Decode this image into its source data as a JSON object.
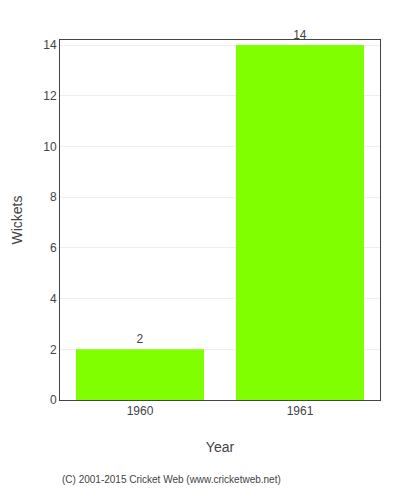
{
  "chart_data": {
    "type": "bar",
    "categories": [
      "1960",
      "1961"
    ],
    "values": [
      2,
      14
    ],
    "color": "#7FFF00",
    "xlabel": "Year",
    "ylabel": "Wickets",
    "ylim": [
      0,
      14.2
    ],
    "yticks": [
      0,
      2,
      4,
      6,
      8,
      10,
      12,
      14
    ],
    "grid": true,
    "data_labels": true,
    "annotations": [
      "(C) 2001-2015 Cricket Web (www.cricketweb.net)"
    ]
  }
}
